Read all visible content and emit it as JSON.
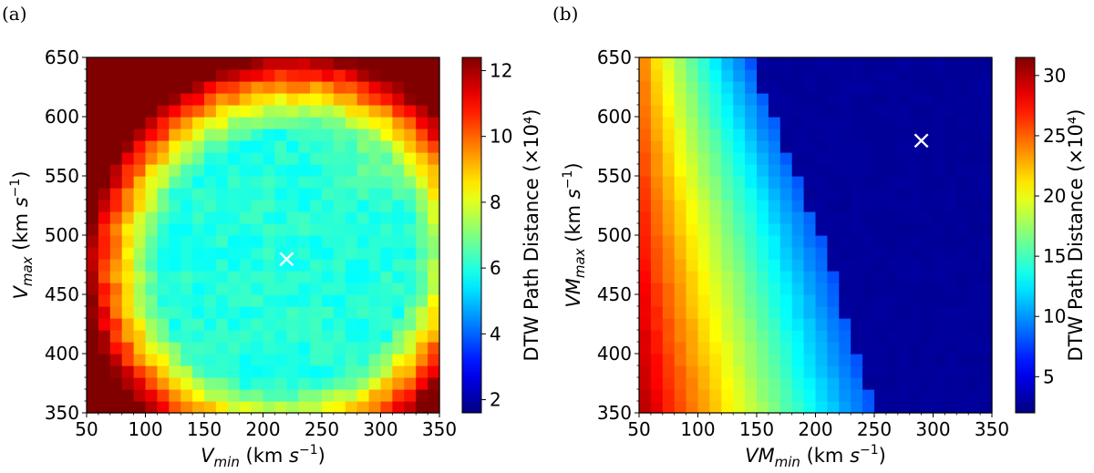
{
  "chart_data": [
    {
      "type": "heatmap",
      "panel_label": "(a)",
      "xlabel": {
        "main": "V",
        "sub": "min",
        "unit": " (km s",
        "sup": "−1",
        "close": ")"
      },
      "ylabel": {
        "main": "V",
        "sub": "max",
        "unit": " (km s",
        "sup": "−1",
        "close": ")"
      },
      "xlim": [
        50,
        350
      ],
      "ylim": [
        350,
        650
      ],
      "xticks": [
        "50",
        "100",
        "150",
        "200",
        "250",
        "300",
        "350"
      ],
      "yticks": [
        "350",
        "400",
        "450",
        "500",
        "550",
        "600",
        "650"
      ],
      "grid": {
        "nx": 30,
        "ny": 30
      },
      "colormap": "jet",
      "colorbar": {
        "label": "DTW Path Distance (×10⁴)",
        "min": 1.6,
        "max": 12.4,
        "ticks": [
          "2",
          "4",
          "6",
          "8",
          "10",
          "12"
        ]
      },
      "field": {
        "model": "elliptical_valley",
        "center": [
          220,
          480
        ],
        "base": 1.6,
        "along_axis": [
          1,
          -1
        ],
        "along_coeff": 2.2,
        "across_coeff": 8.0,
        "corner_peak_low_left": 12.3,
        "corner_peak_high_right": 8.5
      },
      "marker": {
        "x": 220,
        "y": 480,
        "symbol": "×",
        "color": "#ffffff"
      }
    },
    {
      "type": "heatmap",
      "panel_label": "(b)",
      "xlabel": {
        "main": "VM",
        "sub": "min",
        "unit": " (km s",
        "sup": "−1",
        "close": ")"
      },
      "ylabel": {
        "main": "VM",
        "sub": "max",
        "unit": " (km s",
        "sup": "−1",
        "close": ")"
      },
      "xlim": [
        50,
        350
      ],
      "ylim": [
        350,
        650
      ],
      "xticks": [
        "50",
        "100",
        "150",
        "200",
        "250",
        "300",
        "350"
      ],
      "yticks": [
        "350",
        "400",
        "450",
        "500",
        "550",
        "600",
        "650"
      ],
      "grid": {
        "nx": 30,
        "ny": 30
      },
      "colormap": "jet",
      "colorbar": {
        "label": "DTW Path Distance (×10⁴)",
        "min": 2.0,
        "max": 31.5,
        "ticks": [
          "5",
          "10",
          "15",
          "20",
          "25",
          "30"
        ]
      },
      "field": {
        "model": "vertical_bands",
        "left_value": 31.0,
        "mid_value": 16.0,
        "valley_start_x": 205,
        "valley_value": 2.6
      },
      "marker": {
        "x": 290,
        "y": 580,
        "symbol": "×",
        "color": "#ffffff"
      }
    }
  ]
}
